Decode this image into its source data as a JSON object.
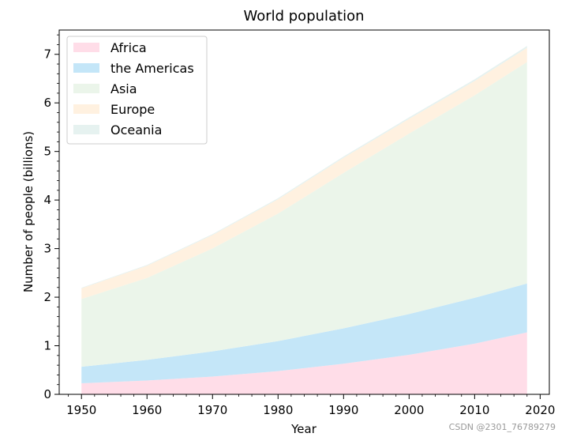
{
  "chart_data": {
    "type": "area",
    "stacked": true,
    "title": "World population",
    "xlabel": "Year",
    "ylabel": "Number of people (billions)",
    "x": [
      1950,
      1960,
      1970,
      1980,
      1990,
      2000,
      2010,
      2018
    ],
    "xlim": [
      1946.6,
      2021.4
    ],
    "ylim": [
      0,
      7.5
    ],
    "xticks": [
      1950,
      1960,
      1970,
      1980,
      1990,
      2000,
      2010,
      2020
    ],
    "yticks": [
      0,
      1,
      2,
      3,
      4,
      5,
      6,
      7
    ],
    "series": [
      {
        "name": "Africa",
        "color": "#ffdde8",
        "values": [
          0.228,
          0.284,
          0.365,
          0.477,
          0.631,
          0.814,
          1.044,
          1.275
        ]
      },
      {
        "name": "the Americas",
        "color": "#c4e6f8",
        "values": [
          0.34,
          0.425,
          0.519,
          0.619,
          0.727,
          0.84,
          0.943,
          1.006
        ]
      },
      {
        "name": "Asia",
        "color": "#ebf5ea",
        "values": [
          1.394,
          1.686,
          2.12,
          2.625,
          3.202,
          3.714,
          4.169,
          4.56
        ]
      },
      {
        "name": "Europe",
        "color": "#fff1e0",
        "values": [
          0.22,
          0.253,
          0.276,
          0.295,
          0.31,
          0.303,
          0.294,
          0.293
        ]
      },
      {
        "name": "Oceania",
        "color": "#e6f2f0",
        "values": [
          0.012,
          0.015,
          0.019,
          0.022,
          0.026,
          0.031,
          0.036,
          0.039
        ]
      }
    ],
    "legend_position": "upper-left",
    "grid": false
  },
  "watermark": "CSDN @2301_76789279"
}
